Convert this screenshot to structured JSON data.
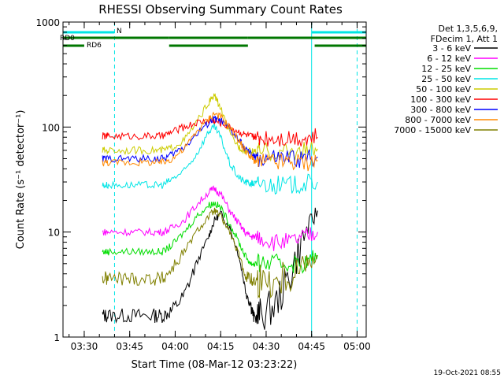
{
  "chart_data": {
    "type": "line",
    "title": "RHESSI Observing Summary Count Rates",
    "xlabel": "Start Time (08-Mar-12 03:23:22)",
    "ylabel": "Count Rate (s⁻¹ detector⁻¹)",
    "y_scale": "log",
    "ylim": [
      1,
      1000
    ],
    "xlim_minutes_after_0323": [
      0,
      100
    ],
    "x_ticks": [
      {
        "label": "03:30",
        "minute": 7
      },
      {
        "label": "03:45",
        "minute": 22
      },
      {
        "label": "04:00",
        "minute": 37
      },
      {
        "label": "04:15",
        "minute": 52
      },
      {
        "label": "04:30",
        "minute": 67
      },
      {
        "label": "04:45",
        "minute": 82
      },
      {
        "label": "05:00",
        "minute": 97
      }
    ],
    "y_ticks": [
      {
        "label": "1",
        "value": 1
      },
      {
        "label": "10",
        "value": 10
      },
      {
        "label": "100",
        "value": 100
      },
      {
        "label": "1000",
        "value": 1000
      }
    ],
    "legend_header": [
      "Det 1,3,5,6,9,",
      "FDecim 1, Att 1"
    ],
    "legend_position": "right",
    "series": [
      {
        "name": "3 - 6 keV",
        "color": "#000000",
        "x": [
          13,
          15,
          20,
          25,
          30,
          33,
          36,
          40,
          44,
          48,
          50,
          52,
          55,
          58,
          60,
          62,
          63,
          65,
          70,
          75,
          80,
          84
        ],
        "y": [
          1.6,
          1.6,
          1.6,
          1.6,
          1.6,
          1.6,
          1.8,
          2.5,
          5,
          9,
          13,
          15,
          11,
          6,
          3,
          2,
          1.5,
          1.6,
          2,
          4,
          10,
          16
        ]
      },
      {
        "name": "6 - 12 keV",
        "color": "#ff00ff",
        "x": [
          13,
          15,
          20,
          25,
          30,
          33,
          36,
          40,
          44,
          48,
          50,
          52,
          55,
          58,
          60,
          62,
          63,
          65,
          70,
          75,
          80,
          84
        ],
        "y": [
          10,
          10,
          10,
          10,
          10,
          10,
          11,
          13,
          18,
          24,
          26,
          23,
          16,
          12,
          10,
          9,
          9,
          9,
          8,
          8,
          9,
          10
        ]
      },
      {
        "name": "12 - 25 keV",
        "color": "#00dd00",
        "x": [
          13,
          15,
          20,
          25,
          30,
          33,
          36,
          40,
          44,
          48,
          50,
          52,
          55,
          58,
          60,
          62,
          63,
          65,
          70,
          75,
          80,
          84
        ],
        "y": [
          6.5,
          6.5,
          6.5,
          6.5,
          6.5,
          6.5,
          7.5,
          10,
          14,
          18,
          19,
          17,
          12,
          8,
          6,
          5,
          5,
          5,
          5,
          5,
          5,
          6
        ]
      },
      {
        "name": "25 - 50 keV",
        "color": "#00e5e5",
        "x": [
          13,
          15,
          20,
          25,
          30,
          33,
          36,
          40,
          44,
          48,
          50,
          52,
          55,
          58,
          60,
          62,
          63,
          65,
          70,
          75,
          80,
          84
        ],
        "y": [
          28,
          28,
          28,
          28,
          28,
          28,
          32,
          38,
          55,
          90,
          100,
          80,
          45,
          33,
          30,
          29,
          29,
          29,
          28,
          28,
          29,
          30
        ]
      },
      {
        "name": "50 - 100 keV",
        "color": "#cccc00",
        "x": [
          13,
          15,
          20,
          25,
          30,
          33,
          36,
          40,
          44,
          48,
          50,
          52,
          55,
          58,
          60,
          62,
          63,
          65,
          70,
          75,
          80,
          84
        ],
        "y": [
          60,
          60,
          60,
          60,
          60,
          60,
          64,
          75,
          110,
          170,
          200,
          150,
          85,
          65,
          60,
          58,
          58,
          58,
          58,
          58,
          60,
          62
        ]
      },
      {
        "name": "100 - 300 keV",
        "color": "#ff0000",
        "x": [
          13,
          15,
          20,
          25,
          30,
          33,
          36,
          40,
          44,
          48,
          50,
          52,
          55,
          58,
          60,
          62,
          63,
          65,
          70,
          75,
          80,
          84
        ],
        "y": [
          82,
          82,
          82,
          82,
          82,
          82,
          90,
          100,
          110,
          115,
          115,
          110,
          100,
          90,
          85,
          82,
          80,
          80,
          80,
          80,
          80,
          80
        ]
      },
      {
        "name": "300 - 800 keV",
        "color": "#0000ff",
        "x": [
          13,
          15,
          20,
          25,
          30,
          33,
          36,
          40,
          44,
          48,
          50,
          52,
          55,
          58,
          60,
          62,
          63,
          65,
          70,
          75,
          80,
          84
        ],
        "y": [
          50,
          50,
          50,
          50,
          50,
          50,
          55,
          65,
          85,
          110,
          120,
          115,
          95,
          75,
          62,
          55,
          52,
          50,
          50,
          50,
          50,
          52
        ]
      },
      {
        "name": "800 - 7000 keV",
        "color": "#ff8800",
        "x": [
          13,
          15,
          20,
          25,
          30,
          33,
          36,
          40,
          44,
          48,
          50,
          52,
          55,
          58,
          60,
          62,
          63,
          65,
          70,
          75,
          80,
          84
        ],
        "y": [
          46,
          46,
          46,
          46,
          46,
          46,
          50,
          62,
          90,
          120,
          135,
          125,
          100,
          75,
          60,
          52,
          48,
          46,
          46,
          46,
          46,
          48
        ]
      },
      {
        "name": "7000 - 15000 keV",
        "color": "#808000",
        "x": [
          13,
          15,
          20,
          25,
          30,
          33,
          36,
          40,
          44,
          48,
          50,
          52,
          55,
          58,
          60,
          62,
          63,
          65,
          70,
          75,
          80,
          84
        ],
        "y": [
          3.6,
          3.6,
          3.6,
          3.6,
          3.6,
          3.6,
          4.5,
          6.5,
          10,
          14,
          16,
          14,
          10,
          6,
          4,
          3.5,
          3.4,
          3.4,
          3.5,
          4,
          5,
          6
        ]
      }
    ],
    "annotations": [
      {
        "text": "N",
        "color": "#00e5e5"
      },
      {
        "text": "RD0",
        "color": "#007700"
      },
      {
        "text": "RD6",
        "color": "#007700"
      }
    ],
    "timestamp": "19-Oct-2021 08:55"
  }
}
